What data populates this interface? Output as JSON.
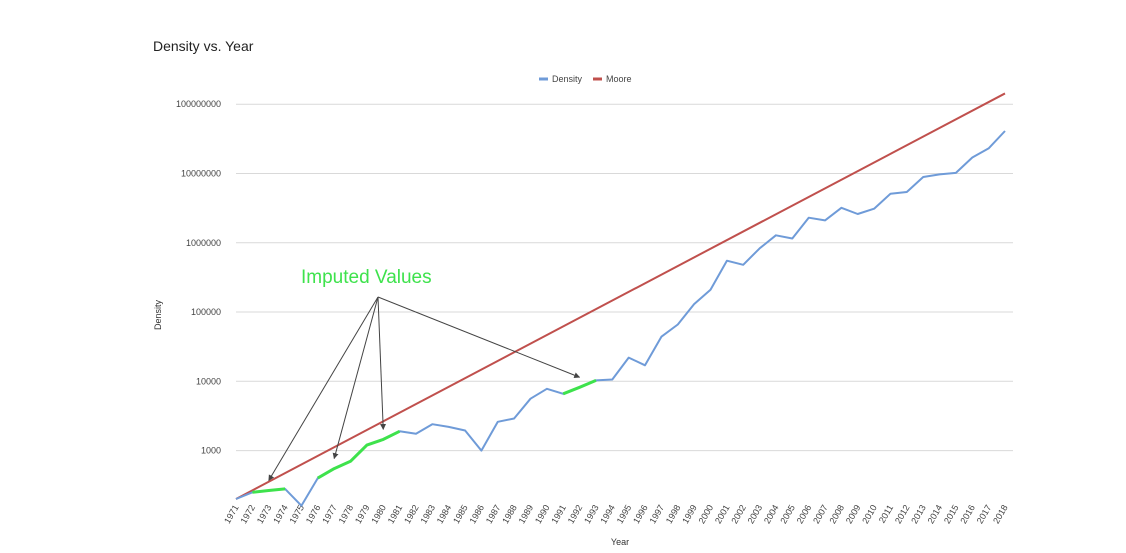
{
  "chart_data": {
    "type": "line",
    "title": "Density vs. Year",
    "xlabel": "Year",
    "ylabel": "Density",
    "y_scale": "log",
    "ylim": [
      200,
      150000000
    ],
    "yticks": [
      {
        "value": 1000,
        "label": "1000"
      },
      {
        "value": 10000,
        "label": "10000"
      },
      {
        "value": 100000,
        "label": "100000"
      },
      {
        "value": 1000000,
        "label": "1000000"
      },
      {
        "value": 10000000,
        "label": "10000000"
      },
      {
        "value": 100000000,
        "label": "100000000"
      }
    ],
    "grid": true,
    "legend_position": "top",
    "categories": [
      "1971",
      "1972",
      "1973",
      "1974",
      "1975",
      "1976",
      "1977",
      "1978",
      "1979",
      "1980",
      "1981",
      "1982",
      "1983",
      "1984",
      "1985",
      "1986",
      "1987",
      "1988",
      "1989",
      "1990",
      "1991",
      "1992",
      "1993",
      "1994",
      "1995",
      "1996",
      "1997",
      "1998",
      "1999",
      "2000",
      "2001",
      "2002",
      "2003",
      "2004",
      "2005",
      "2006",
      "2007",
      "2008",
      "2009",
      "2010",
      "2011",
      "2012",
      "2013",
      "2014",
      "2015",
      "2016",
      "2017",
      "2018"
    ],
    "series": [
      {
        "name": "Density",
        "color": "#6f9bd8",
        "values": [
          200,
          250,
          265,
          280,
          160,
          400,
          550,
          700,
          1200,
          1450,
          1900,
          1750,
          2400,
          2200,
          1950,
          1000,
          2600,
          2900,
          5600,
          7800,
          6600,
          8200,
          10300,
          10600,
          22000,
          17000,
          44000,
          66000,
          130000,
          210000,
          550000,
          480000,
          830000,
          1280000,
          1150000,
          2300000,
          2100000,
          3200000,
          2600000,
          3100000,
          5100000,
          5400000,
          8900000,
          9700000,
          10200000,
          17000000,
          23000000,
          41000000
        ]
      },
      {
        "name": "Moore",
        "color": "#c0504d",
        "start_value": 200,
        "end_value": 143000000
      }
    ],
    "imputed_color": "#3ee24c",
    "imputed_segments": [
      [
        1,
        3
      ],
      [
        5,
        10
      ],
      [
        20,
        22
      ]
    ],
    "annotation": {
      "text": "Imputed Values",
      "color": "#3ee24c",
      "arrow_target_indices": [
        2,
        6,
        9,
        21
      ]
    }
  }
}
